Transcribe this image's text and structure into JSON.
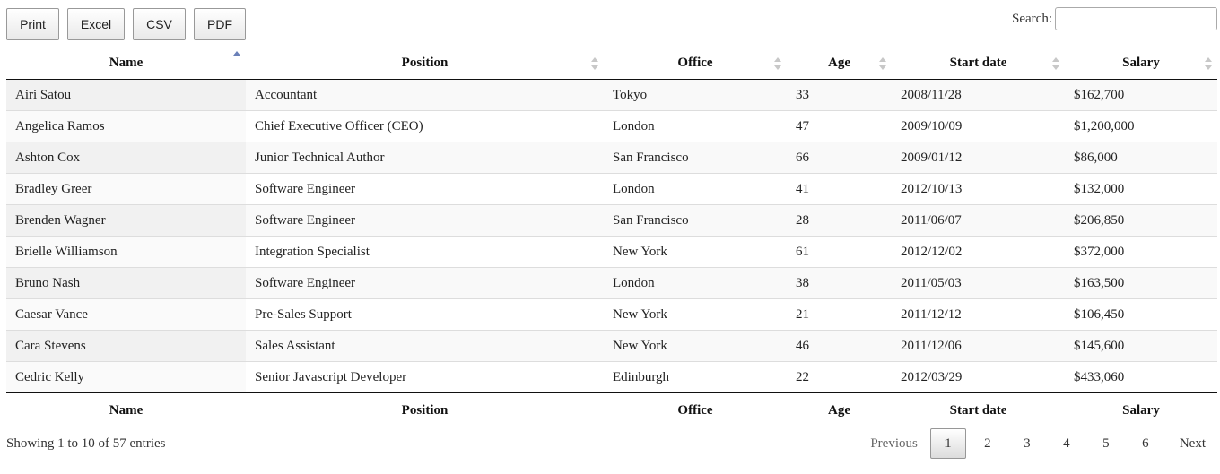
{
  "toolbar": {
    "buttons": [
      "Print",
      "Excel",
      "CSV",
      "PDF"
    ]
  },
  "search": {
    "label": "Search:",
    "value": ""
  },
  "table": {
    "columns": [
      "Name",
      "Position",
      "Office",
      "Age",
      "Start date",
      "Salary"
    ],
    "rows": [
      [
        "Airi Satou",
        "Accountant",
        "Tokyo",
        "33",
        "2008/11/28",
        "$162,700"
      ],
      [
        "Angelica Ramos",
        "Chief Executive Officer (CEO)",
        "London",
        "47",
        "2009/10/09",
        "$1,200,000"
      ],
      [
        "Ashton Cox",
        "Junior Technical Author",
        "San Francisco",
        "66",
        "2009/01/12",
        "$86,000"
      ],
      [
        "Bradley Greer",
        "Software Engineer",
        "London",
        "41",
        "2012/10/13",
        "$132,000"
      ],
      [
        "Brenden Wagner",
        "Software Engineer",
        "San Francisco",
        "28",
        "2011/06/07",
        "$206,850"
      ],
      [
        "Brielle Williamson",
        "Integration Specialist",
        "New York",
        "61",
        "2012/12/02",
        "$372,000"
      ],
      [
        "Bruno Nash",
        "Software Engineer",
        "London",
        "38",
        "2011/05/03",
        "$163,500"
      ],
      [
        "Caesar Vance",
        "Pre-Sales Support",
        "New York",
        "21",
        "2011/12/12",
        "$106,450"
      ],
      [
        "Cara Stevens",
        "Sales Assistant",
        "New York",
        "46",
        "2011/12/06",
        "$145,600"
      ],
      [
        "Cedric Kelly",
        "Senior Javascript Developer",
        "Edinburgh",
        "22",
        "2012/03/29",
        "$433,060"
      ]
    ],
    "sorted_column": "Name",
    "sort_direction": "ascending"
  },
  "info": "Showing 1 to 10 of 57 entries",
  "pagination": {
    "previous": "Previous",
    "pages": [
      "1",
      "2",
      "3",
      "4",
      "5",
      "6"
    ],
    "current": "1",
    "next": "Next"
  },
  "colors": {
    "sort_active": "#6a80b8",
    "sort_inactive": "#c8c8c8",
    "stripe": "#f9f9f9"
  }
}
